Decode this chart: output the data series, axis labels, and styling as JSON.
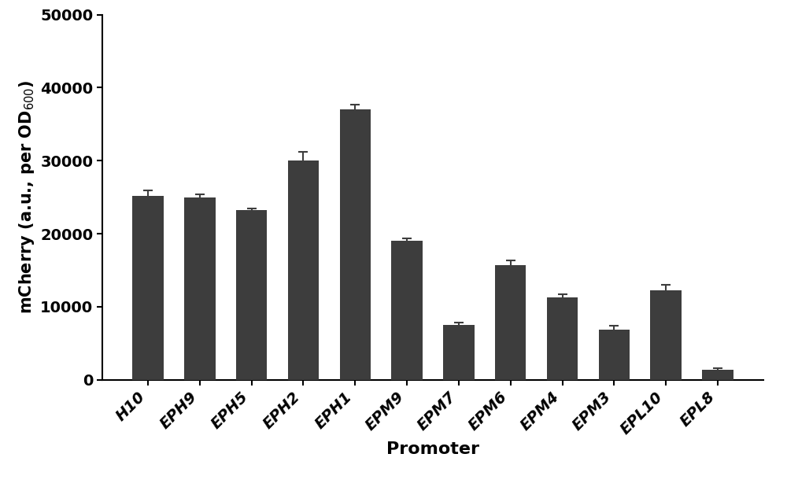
{
  "categories": [
    "H10",
    "EPH9",
    "EPH5",
    "EPH2",
    "EPH1",
    "EPM9",
    "EPM7",
    "EPM6",
    "EPM4",
    "EPM3",
    "EPL10",
    "EPL8"
  ],
  "values": [
    25200,
    25000,
    23200,
    30000,
    37000,
    19000,
    7500,
    15700,
    11300,
    6900,
    12300,
    1400
  ],
  "errors": [
    700,
    400,
    300,
    1200,
    700,
    400,
    300,
    700,
    400,
    500,
    700,
    200
  ],
  "bar_color": "#3d3d3d",
  "background_color": "#ffffff",
  "ylabel": "mCherry (a.u., per OD$_{600}$)",
  "xlabel": "Promoter",
  "ylim": [
    0,
    50000
  ],
  "yticks": [
    0,
    10000,
    20000,
    30000,
    40000,
    50000
  ],
  "axis_label_fontsize": 15,
  "tick_fontsize": 14,
  "bar_width": 0.6,
  "error_capsize": 4,
  "error_linewidth": 1.5,
  "error_color": "#3d3d3d",
  "spine_linewidth": 1.5
}
